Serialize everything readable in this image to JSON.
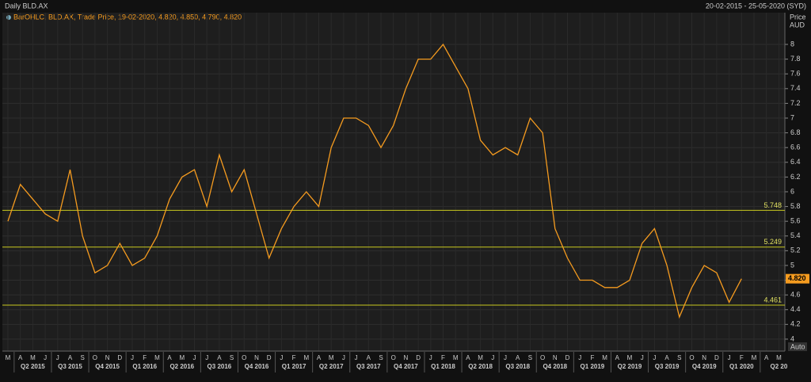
{
  "header": {
    "title": "Daily BLD.AX",
    "range": "20-02-2015 - 25-05-2020 (SYD)",
    "mode": "Auto"
  },
  "chart_data": {
    "type": "line",
    "legend": "BarOHLC, BLD.AX, Trade Price, 19-02-2020, 4.820, 4.850, 4.790, 4.820",
    "y_label": [
      "Price",
      "AUD"
    ],
    "categories": [
      "M",
      "A",
      "M",
      "J",
      "J",
      "A",
      "S",
      "O",
      "N",
      "D",
      "J",
      "F",
      "M",
      "A",
      "M",
      "J",
      "J",
      "A",
      "S",
      "O",
      "N",
      "D",
      "J",
      "F",
      "M",
      "A",
      "M",
      "J",
      "J",
      "A",
      "S",
      "O",
      "N",
      "D",
      "J",
      "F",
      "M",
      "A",
      "M",
      "J",
      "J",
      "A",
      "S",
      "O",
      "N",
      "D",
      "J",
      "F",
      "M",
      "A",
      "M",
      "J",
      "J",
      "A",
      "S",
      "O",
      "N",
      "D",
      "J",
      "F",
      "M",
      "A",
      "M"
    ],
    "quarters": [
      "Q2 2015",
      "Q3 2015",
      "Q4 2015",
      "Q1 2016",
      "Q2 2016",
      "Q3 2016",
      "Q4 2016",
      "Q1 2017",
      "Q2 2017",
      "Q3 2017",
      "Q4 2017",
      "Q1 2018",
      "Q2 2018",
      "Q3 2018",
      "Q4 2018",
      "Q1 2019",
      "Q2 2019",
      "Q3 2019",
      "Q4 2019",
      "Q1 2020",
      "Q2 20"
    ],
    "series": [
      {
        "name": "BLD.AX",
        "color": "#f59b1f",
        "values": [
          5.6,
          6.1,
          5.9,
          5.7,
          5.6,
          6.3,
          5.4,
          4.9,
          5.0,
          5.3,
          5.0,
          5.1,
          5.4,
          5.9,
          6.2,
          6.3,
          5.8,
          6.5,
          6.0,
          6.3,
          5.7,
          5.1,
          5.5,
          5.8,
          6.0,
          5.8,
          6.6,
          7.0,
          7.0,
          6.9,
          6.6,
          6.9,
          7.4,
          7.8,
          7.8,
          8.0,
          7.7,
          7.4,
          6.7,
          6.5,
          6.6,
          6.5,
          7.0,
          6.8,
          5.5,
          5.1,
          4.8,
          4.8,
          4.7,
          4.7,
          4.8,
          5.3,
          5.5,
          5.0,
          4.3,
          4.7,
          5.0,
          4.9,
          4.5,
          4.82,
          null,
          null,
          null
        ]
      }
    ],
    "hlines": [
      5.748,
      5.249,
      4.461
    ],
    "last_price": {
      "value": 4.82,
      "label": "4.820"
    },
    "ylim": [
      3.87,
      8.28
    ],
    "yticks": [
      4,
      4.2,
      4.4,
      4.6,
      4.8,
      5,
      5.2,
      5.4,
      5.6,
      5.8,
      6,
      6.2,
      6.4,
      6.6,
      6.8,
      7,
      7.2,
      7.4,
      7.6,
      7.8,
      8
    ],
    "grid": true
  }
}
